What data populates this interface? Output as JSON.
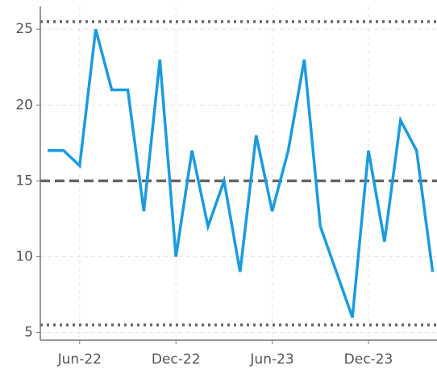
{
  "chart_data": {
    "type": "line",
    "categories": [
      null,
      null,
      "Jun-22",
      null,
      null,
      null,
      null,
      null,
      "Dec-22",
      null,
      null,
      null,
      null,
      null,
      "Jun-23",
      null,
      null,
      null,
      null,
      null,
      "Dec-23",
      null,
      null,
      null,
      null
    ],
    "series": [
      {
        "color": "#1a9be0",
        "values": [
          17,
          17,
          16,
          25,
          21,
          21,
          13,
          23,
          10,
          17,
          12,
          15,
          9,
          18,
          13,
          17,
          23,
          12,
          9,
          6,
          17,
          11,
          19,
          17,
          9
        ]
      }
    ],
    "reference_lines": [
      {
        "value": 25.5,
        "style": "dotted"
      },
      {
        "value": 15,
        "style": "dashed"
      },
      {
        "value": 5.5,
        "style": "dotted"
      }
    ],
    "ylim": [
      4.5,
      26.5
    ],
    "yticks": [
      5,
      10,
      15,
      20,
      25
    ],
    "grid": true
  }
}
